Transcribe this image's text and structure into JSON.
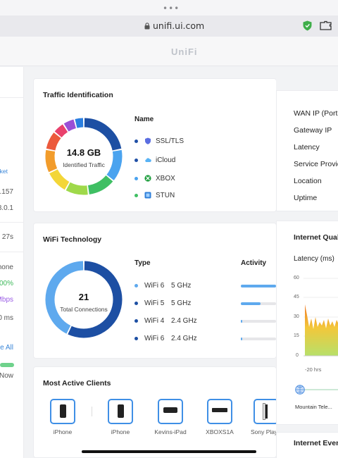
{
  "browser": {
    "url": "unifi.ui.com",
    "app_title": "UniFi"
  },
  "left_panel": {
    "texts": [
      "ket",
      ".157",
      "8.0.1",
      "27s",
      "hone",
      "00%",
      "Mbps",
      "0 ms",
      "e All",
      "Now"
    ],
    "colors": [
      "#3a86d8",
      "#555555",
      "#555555",
      "#555555",
      "#555555",
      "#3db85a",
      "#9b5de5",
      "#555555",
      "#3a86d8",
      "#555555"
    ]
  },
  "traffic": {
    "title": "Traffic Identification",
    "total": "14.8 GB",
    "total_label": "Identified Traffic",
    "column_header": "Name",
    "items": [
      {
        "name": "SSL/TLS",
        "dot_color": "#1f4fa6",
        "icon": "shield-icon",
        "icon_color": "#5b6ee1"
      },
      {
        "name": "iCloud",
        "dot_color": "#1f4fa6",
        "icon": "cloud-icon",
        "icon_color": "#59b3f5"
      },
      {
        "name": "XBOX",
        "dot_color": "#4aa3ef",
        "icon": "xbox-icon",
        "icon_color": "#1e9e3e"
      },
      {
        "name": "STUN",
        "dot_color": "#3fbf63",
        "icon": "stun-icon",
        "icon_color": "#2f7fd9"
      }
    ],
    "segments": [
      {
        "value": 22,
        "color": "#1d4fa3"
      },
      {
        "value": 14,
        "color": "#4aa3ef"
      },
      {
        "value": 12,
        "color": "#3fbf63"
      },
      {
        "value": 10,
        "color": "#9fd94a"
      },
      {
        "value": 10,
        "color": "#f3d638"
      },
      {
        "value": 10,
        "color": "#f29c2b"
      },
      {
        "value": 8,
        "color": "#ec5a3c"
      },
      {
        "value": 5,
        "color": "#e9416c"
      },
      {
        "value": 5,
        "color": "#9a4fd6"
      },
      {
        "value": 4,
        "color": "#2a7fe0"
      }
    ]
  },
  "wifi": {
    "title": "WiFi Technology",
    "total": "21",
    "total_label": "Total Connections",
    "type_header": "Type",
    "activity_header": "Activity",
    "rows": [
      {
        "gen": "WiFi 6",
        "band": "5 GHz",
        "dot_color": "#5ea9ee",
        "activity": 1.0
      },
      {
        "gen": "WiFi 5",
        "band": "5 GHz",
        "dot_color": "#1d4fa3",
        "activity": 0.55
      },
      {
        "gen": "WiFi 4",
        "band": "2.4 GHz",
        "dot_color": "#1d4fa3",
        "activity": 0.04
      },
      {
        "gen": "WiFi 6",
        "band": "2.4 GHz",
        "dot_color": "#1d4fa3",
        "activity": 0.04
      }
    ],
    "segments": [
      {
        "value": 12,
        "color": "#1d4fa3"
      },
      {
        "value": 9,
        "color": "#5ea9ee"
      }
    ]
  },
  "clients": {
    "title": "Most Active Clients",
    "items": [
      {
        "name": "iPhone",
        "device": "phone"
      },
      {
        "name": "iPhone",
        "device": "phone"
      },
      {
        "name": "Kevins-iPad",
        "device": "tv"
      },
      {
        "name": "XBOXS1A",
        "device": "console"
      },
      {
        "name": "Sony PlayS",
        "device": "ps"
      }
    ]
  },
  "internet": {
    "labels": [
      "WAN IP (Port",
      "Gateway IP",
      "Latency",
      "Service Provid",
      "Location",
      "Uptime"
    ],
    "quality_title": "Internet Quali",
    "latency_label": "Latency (ms)",
    "y_ticks": [
      "60",
      "45",
      "30",
      "15",
      "0"
    ],
    "x_tick": "-20 hrs",
    "isp_name": "Mountain Tele...",
    "events_title": "Internet Even"
  }
}
